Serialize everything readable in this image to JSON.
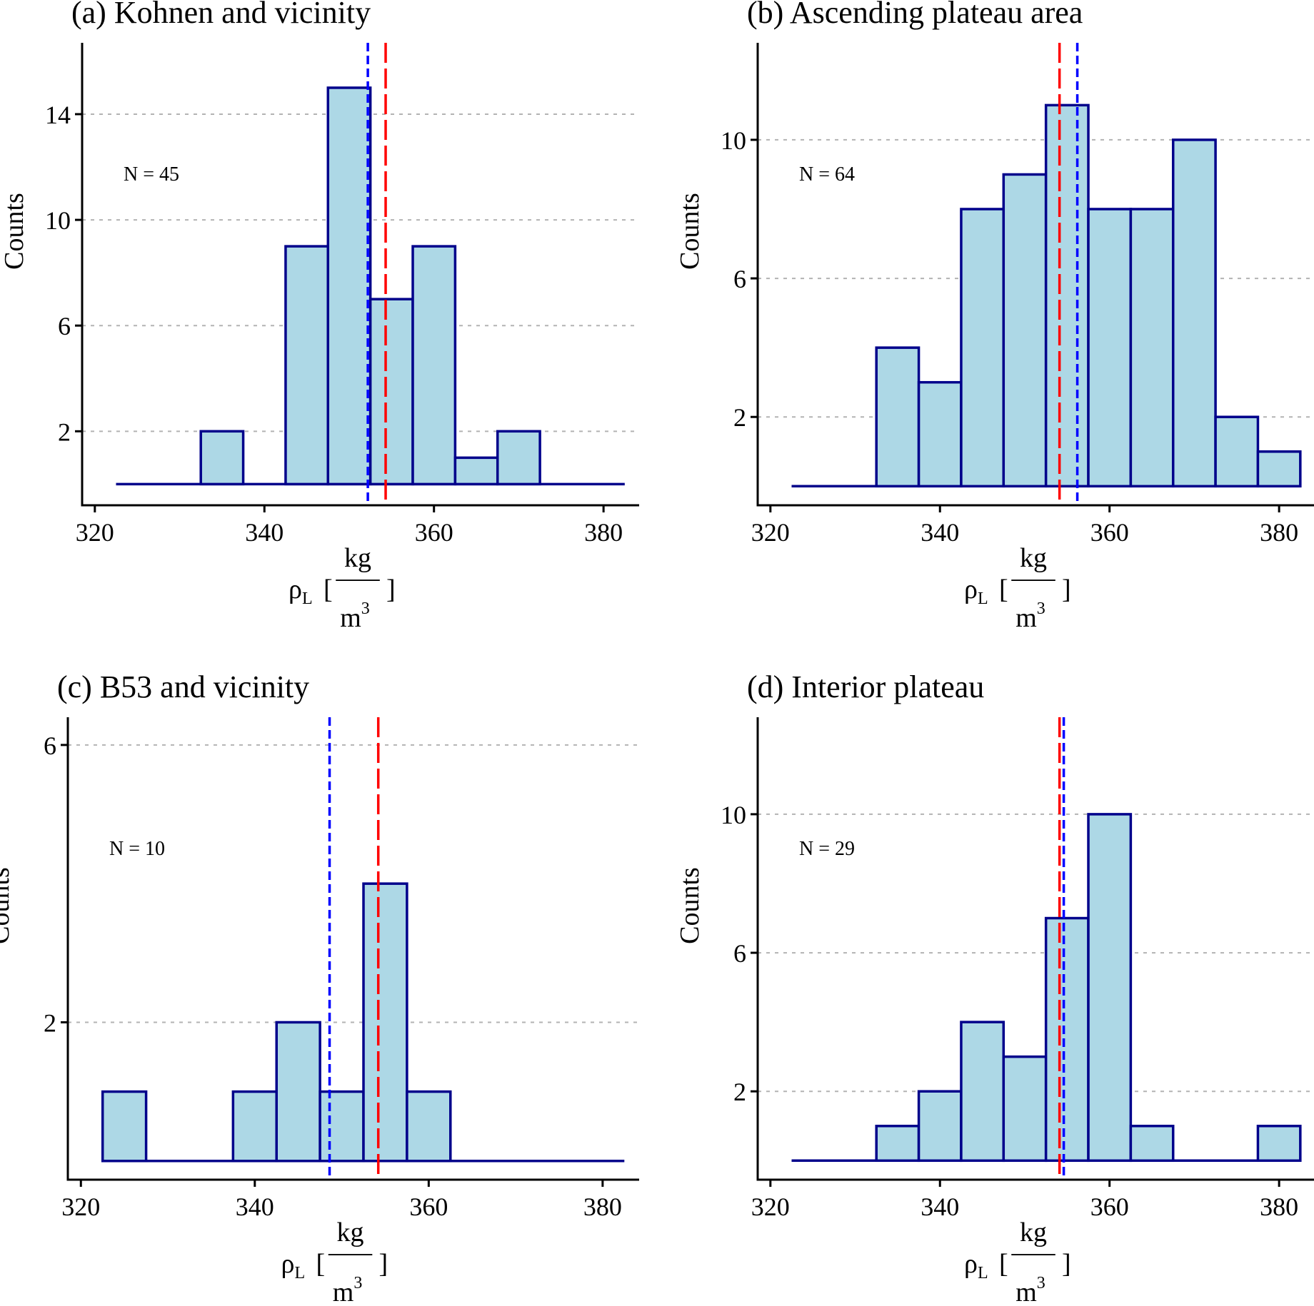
{
  "figure": {
    "colors": {
      "bar_fill": "#add8e6",
      "bar_stroke": "#00008b",
      "mean_line": "#ff0000",
      "median_line": "#0000ff",
      "grid": "#b3b3b3"
    },
    "fraction_bar": "—"
  },
  "chart_data": [
    {
      "type": "bar",
      "title": "(a) Kohnen and vicinity",
      "ylabel": "Counts",
      "xlabel": {
        "symbol": "ρ",
        "subscript": "L",
        "open": "[",
        "close": "]",
        "numerator": "kg",
        "denominator": "m",
        "exponent": "3"
      },
      "annotation": "N = 45",
      "bin_width": 5,
      "bin_centers": [
        325,
        330,
        335,
        340,
        345,
        350,
        355,
        360,
        365,
        370,
        375,
        380
      ],
      "counts": [
        0,
        0,
        2,
        0,
        9,
        15,
        7,
        9,
        1,
        2,
        0,
        0
      ],
      "mean": 354.3,
      "median": 352.2,
      "xlim": [
        318.5,
        384.2
      ],
      "ylim": [
        -0.8,
        16.7
      ],
      "xticks": [
        320,
        340,
        360,
        380
      ],
      "yticks": [
        2,
        6,
        10,
        14
      ],
      "grid": "horizontal dashed"
    },
    {
      "type": "bar",
      "title": "(b) Ascending plateau area",
      "ylabel": "Counts",
      "xlabel": {
        "symbol": "ρ",
        "subscript": "L",
        "open": "[",
        "close": "]",
        "numerator": "kg",
        "denominator": "m",
        "exponent": "3"
      },
      "annotation": "N = 64",
      "bin_width": 5,
      "bin_centers": [
        325,
        330,
        335,
        340,
        345,
        350,
        355,
        360,
        365,
        370,
        375,
        380
      ],
      "counts": [
        0,
        0,
        4,
        3,
        8,
        9,
        11,
        8,
        8,
        10,
        2,
        1
      ],
      "mean": 354.1,
      "median": 356.2,
      "xlim": [
        318.5,
        384.2
      ],
      "ylim": [
        -0.55,
        12.8
      ],
      "xticks": [
        320,
        340,
        360,
        380
      ],
      "yticks": [
        2,
        6,
        10
      ],
      "grid": "horizontal dashed"
    },
    {
      "type": "bar",
      "title": "(c) B53 and vicinity",
      "ylabel": "Counts",
      "xlabel": {
        "symbol": "ρ",
        "subscript": "L",
        "open": "[",
        "close": "]",
        "numerator": "kg",
        "denominator": "m",
        "exponent": "3"
      },
      "annotation": "N = 10",
      "bin_width": 5,
      "bin_centers": [
        325,
        330,
        335,
        340,
        345,
        350,
        355,
        360,
        365,
        370,
        375,
        380
      ],
      "counts": [
        1,
        0,
        0,
        1,
        2,
        1,
        4,
        1,
        0,
        0,
        0,
        0
      ],
      "mean": 354.2,
      "median": 348.6,
      "xlim": [
        318.5,
        384.2
      ],
      "ylim": [
        -0.27,
        6.4
      ],
      "xticks": [
        320,
        340,
        360,
        380
      ],
      "yticks": [
        2,
        6
      ],
      "grid": "horizontal dashed"
    },
    {
      "type": "bar",
      "title": "(d) Interior plateau",
      "ylabel": "Counts",
      "xlabel": {
        "symbol": "ρ",
        "subscript": "L",
        "open": "[",
        "close": "]",
        "numerator": "kg",
        "denominator": "m",
        "exponent": "3"
      },
      "annotation": "N = 29",
      "bin_width": 5,
      "bin_centers": [
        325,
        330,
        335,
        340,
        345,
        350,
        355,
        360,
        365,
        370,
        375,
        380
      ],
      "counts": [
        0,
        0,
        1,
        2,
        4,
        3,
        7,
        10,
        1,
        0,
        0,
        1
      ],
      "mean": 354.1,
      "median": 354.6,
      "xlim": [
        318.5,
        384.2
      ],
      "ylim": [
        -0.55,
        12.8
      ],
      "xticks": [
        320,
        340,
        360,
        380
      ],
      "yticks": [
        2,
        6,
        10
      ],
      "grid": "horizontal dashed"
    }
  ]
}
